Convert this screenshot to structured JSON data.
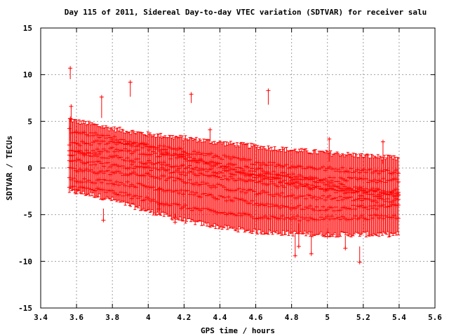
{
  "chart_data": {
    "type": "scatter",
    "title": "Day 115 of 2011, Sidereal Day-to-day VTEC variation (SDTVAR) for receiver salu",
    "xlabel": "GPS time / hours",
    "ylabel": "SDTVAR / TECUs",
    "xlim": [
      3.4,
      5.6
    ],
    "ylim": [
      -15,
      15
    ],
    "xticks": [
      3.4,
      3.6,
      3.8,
      4,
      4.2,
      4.4,
      4.6,
      4.8,
      5,
      5.2,
      5.4,
      5.6
    ],
    "xtick_labels": [
      "3.4",
      "3.6",
      "3.8",
      "4",
      "4.2",
      "4.4",
      "4.6",
      "4.8",
      "5",
      "5.2",
      "5.4",
      "5.6"
    ],
    "yticks": [
      -15,
      -10,
      -5,
      0,
      5,
      10,
      15
    ],
    "ytick_labels": [
      "-15",
      "-10",
      "-5",
      "0",
      "5",
      "10",
      "15"
    ],
    "grid": true,
    "marker": "+",
    "color": "#ff0000",
    "x_start": 3.56,
    "x_end": 5.4,
    "envelope": {
      "x": [
        3.56,
        3.6,
        3.7,
        3.8,
        3.9,
        4.0,
        4.2,
        4.4,
        4.6,
        4.8,
        5.0,
        5.2,
        5.4
      ],
      "upper": [
        5.2,
        5.0,
        4.6,
        4.2,
        3.9,
        3.6,
        3.2,
        2.7,
        2.3,
        1.9,
        1.6,
        1.3,
        1.0
      ],
      "lower": [
        -2.5,
        -2.6,
        -2.9,
        -3.4,
        -4.0,
        -4.6,
        -5.6,
        -6.3,
        -6.8,
        -7.0,
        -7.1,
        -7.1,
        -7.1
      ]
    },
    "series": [
      {
        "name": "trace-1",
        "x": [
          3.56,
          3.8,
          4.0,
          4.2,
          4.4,
          4.6,
          4.8,
          5.0,
          5.2,
          5.4
        ],
        "y": [
          2.5,
          2.8,
          2.4,
          1.8,
          1.2,
          0.6,
          0.2,
          -0.1,
          -0.3,
          -0.4
        ]
      },
      {
        "name": "trace-2",
        "x": [
          3.56,
          3.8,
          4.0,
          4.2,
          4.4,
          4.6,
          4.8,
          5.0,
          5.2,
          5.4
        ],
        "y": [
          1.8,
          1.2,
          0.6,
          0.1,
          -0.4,
          -0.8,
          -1.0,
          -1.2,
          -1.3,
          -1.4
        ]
      },
      {
        "name": "trace-3",
        "x": [
          3.56,
          3.8,
          4.0,
          4.2,
          4.4,
          4.6,
          4.8,
          5.0,
          5.2,
          5.4
        ],
        "y": [
          0.8,
          0.3,
          0.0,
          -0.5,
          -1.0,
          -1.5,
          -1.9,
          -2.1,
          -2.3,
          -2.5
        ]
      },
      {
        "name": "trace-4",
        "x": [
          3.56,
          3.8,
          4.0,
          4.2,
          4.4,
          4.6,
          4.8,
          5.0,
          5.2,
          5.4
        ],
        "y": [
          -0.2,
          -0.5,
          -0.8,
          -1.4,
          -2.0,
          -2.6,
          -3.0,
          -3.2,
          -3.4,
          -3.5
        ]
      },
      {
        "name": "trace-5",
        "x": [
          3.56,
          3.8,
          4.0,
          4.2,
          4.4,
          4.6,
          4.8,
          5.0,
          5.2,
          5.4
        ],
        "y": [
          -1.2,
          -1.5,
          -2.0,
          -2.6,
          -3.2,
          -3.8,
          -4.2,
          -4.4,
          -4.2,
          -4.1
        ]
      },
      {
        "name": "trace-6",
        "x": [
          3.56,
          3.8,
          4.0,
          4.2,
          4.4,
          4.6,
          4.8,
          5.0,
          5.2,
          5.4
        ],
        "y": [
          -2.0,
          -2.6,
          -3.4,
          -4.2,
          -4.8,
          -5.2,
          -5.4,
          -5.4,
          -5.3,
          -5.2
        ]
      },
      {
        "name": "trace-7",
        "x": [
          3.56,
          3.8,
          4.0,
          4.2,
          4.4,
          4.6,
          4.8,
          5.0,
          5.2,
          5.4
        ],
        "y": [
          1.5,
          2.0,
          1.6,
          1.0,
          0.4,
          -0.2,
          -0.8,
          -1.6,
          -2.4,
          -3.0
        ]
      },
      {
        "name": "trace-8",
        "x": [
          3.56,
          3.8,
          4.0,
          4.2,
          4.4,
          4.6,
          4.8,
          5.0,
          5.2,
          5.4
        ],
        "y": [
          4.0,
          3.2,
          2.2,
          1.2,
          0.2,
          -0.8,
          -1.6,
          -2.4,
          -2.8,
          -3.0
        ]
      }
    ],
    "outliers": [
      {
        "x": 3.565,
        "y": 10.7
      },
      {
        "x": 3.57,
        "y": 6.6
      },
      {
        "x": 3.565,
        "y": 5.3
      },
      {
        "x": 3.74,
        "y": 7.6
      },
      {
        "x": 3.9,
        "y": 9.2
      },
      {
        "x": 4.24,
        "y": 7.9
      },
      {
        "x": 4.345,
        "y": 4.1
      },
      {
        "x": 4.67,
        "y": 8.3
      },
      {
        "x": 5.01,
        "y": 3.1
      },
      {
        "x": 5.31,
        "y": 2.8
      },
      {
        "x": 3.75,
        "y": -5.6
      },
      {
        "x": 4.82,
        "y": -9.4
      },
      {
        "x": 4.84,
        "y": -8.4
      },
      {
        "x": 4.91,
        "y": -9.2
      },
      {
        "x": 5.0,
        "y": -7.3
      },
      {
        "x": 5.18,
        "y": -10.1
      },
      {
        "x": 5.1,
        "y": -8.6
      },
      {
        "x": 4.06,
        "y": -4.4
      },
      {
        "x": 4.15,
        "y": -5.8
      }
    ]
  }
}
